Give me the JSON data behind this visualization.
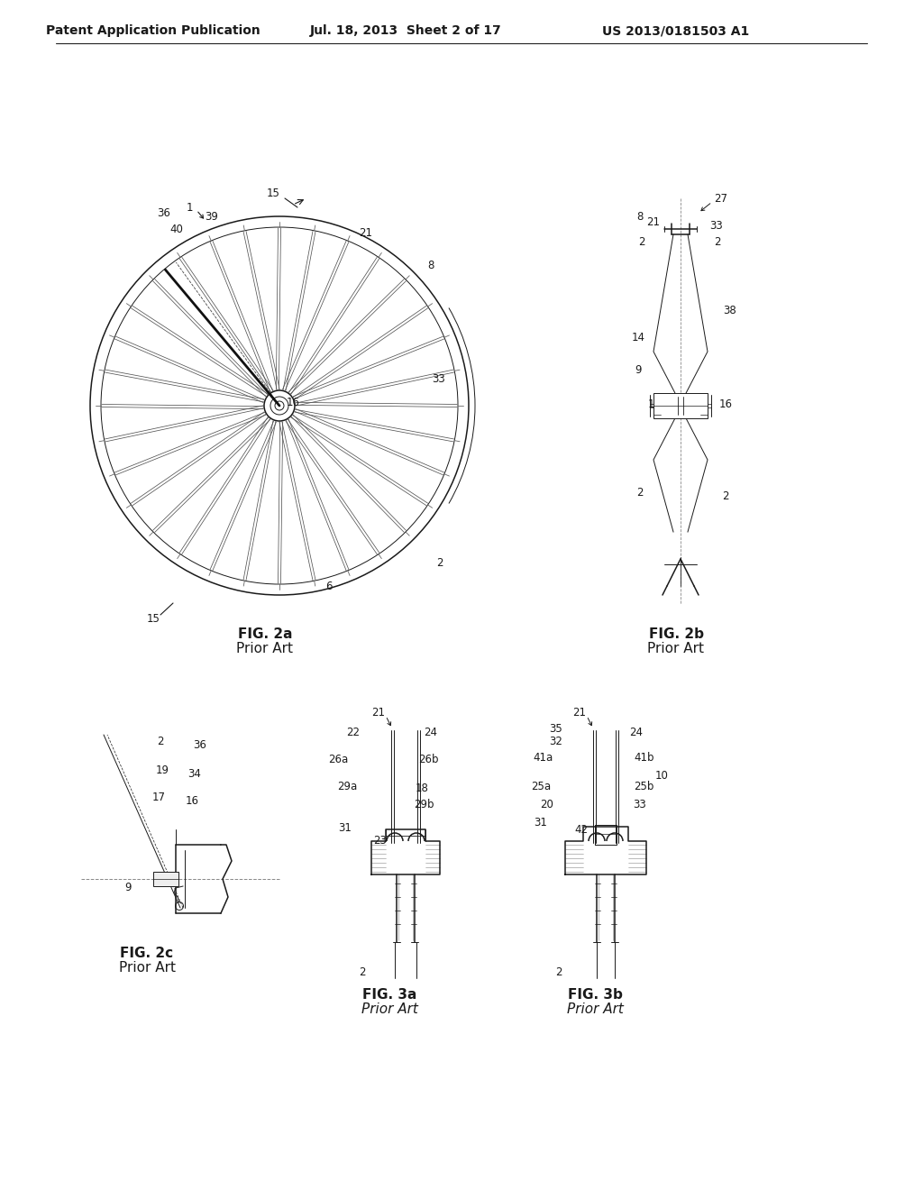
{
  "bg_color": "#ffffff",
  "line_color": "#1a1a1a",
  "header_text_left": "Patent Application Publication",
  "header_text_mid": "Jul. 18, 2013  Sheet 2 of 17",
  "header_text_right": "US 2013/0181503 A1",
  "fig2a_label": "FIG. 2a",
  "fig2a_sub": "Prior Art",
  "fig2b_label": "FIG. 2b",
  "fig2b_sub": "Prior Art",
  "fig2c_label": "FIG. 2c",
  "fig2c_sub": "Prior Art",
  "fig3a_label": "FIG. 3a",
  "fig3a_sub": "Prior Art",
  "fig3b_label": "FIG. 3b",
  "fig3b_sub": "Prior Art"
}
